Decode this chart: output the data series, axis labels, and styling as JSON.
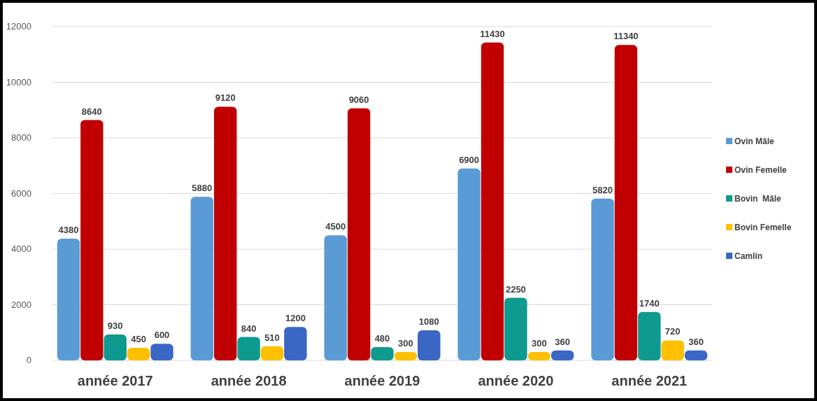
{
  "chart_data": {
    "type": "bar",
    "categories": [
      "année 2017",
      "année 2018",
      "année 2019",
      "année 2020",
      "année 2021"
    ],
    "series": [
      {
        "name": "Ovin Mâle",
        "color": "#5b9bd5",
        "values": [
          4380,
          5880,
          4500,
          6900,
          5820
        ]
      },
      {
        "name": "Ovin Femelle",
        "color": "#c00000",
        "values": [
          8640,
          9120,
          9060,
          11430,
          11340
        ]
      },
      {
        "name": "Bovin  Mâle",
        "color": "#0e9a8e",
        "values": [
          930,
          840,
          480,
          2250,
          1740
        ]
      },
      {
        "name": "Bovin Femelle",
        "color": "#ffc000",
        "values": [
          450,
          510,
          300,
          300,
          720
        ]
      },
      {
        "name": "Camlin",
        "color": "#3a66c4",
        "values": [
          600,
          1200,
          1080,
          360,
          360
        ]
      }
    ],
    "ylim": [
      0,
      12000
    ],
    "yticks": [
      0,
      2000,
      4000,
      6000,
      8000,
      10000,
      12000
    ],
    "grid": "y",
    "legend": "right",
    "data_labels": true
  }
}
